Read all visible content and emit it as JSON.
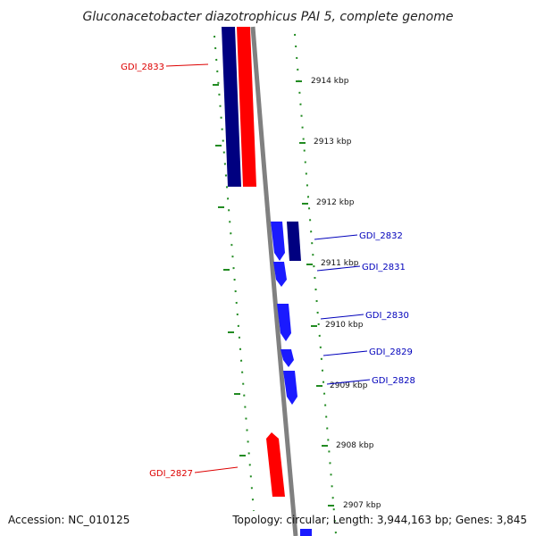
{
  "title": "Gluconacetobacter diazotrophicus PAI 5, complete genome",
  "footer": {
    "accession": "Accession: NC_010125",
    "summary": "Topology: circular; Length: 3,944,163 bp; Genes: 3,845"
  },
  "scale_labels": [
    "2914 kbp",
    "2913 kbp",
    "2912 kbp",
    "2911 kbp",
    "2910 kbp",
    "2909 kbp",
    "2908 kbp",
    "2907 kbp"
  ],
  "genes": [
    {
      "label": "GDI_2833",
      "color": "#dd0000"
    },
    {
      "label": "GDI_2832",
      "color": "#0000bb"
    },
    {
      "label": "GDI_2831",
      "color": "#0000bb"
    },
    {
      "label": "GDI_2830",
      "color": "#0000bb"
    },
    {
      "label": "GDI_2829",
      "color": "#0000bb"
    },
    {
      "label": "GDI_2828",
      "color": "#0000bb"
    },
    {
      "label": "GDI_2827",
      "color": "#dd0000"
    }
  ],
  "colors": {
    "backbone": "#808080",
    "forward_dark": "#000080",
    "forward": "#1a1aff",
    "reverse": "#ff0000",
    "ticks": "#228b22"
  }
}
